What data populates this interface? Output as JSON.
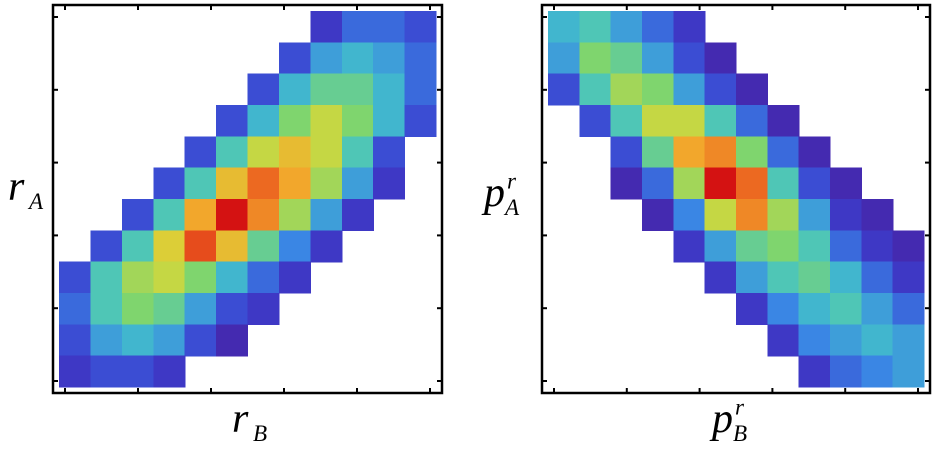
{
  "chart_data": [
    {
      "type": "heatmap",
      "x_label": {
        "main": "r",
        "sub": "B"
      },
      "y_label": {
        "main": "r",
        "sub": "A"
      },
      "zlim": [
        0,
        1
      ],
      "colormap": [
        "#4a1c9c",
        "#3b3fcf",
        "#3a86e4",
        "#43c2c8",
        "#7fd56e",
        "#d7d83a",
        "#f2a72c",
        "#ea5a1e",
        "#d41212"
      ],
      "z": [
        [
          null,
          null,
          null,
          null,
          null,
          null,
          null,
          null,
          0.1,
          0.2,
          0.2,
          0.15
        ],
        [
          null,
          null,
          null,
          null,
          null,
          null,
          null,
          0.15,
          0.3,
          0.35,
          0.3,
          0.2
        ],
        [
          null,
          null,
          null,
          null,
          null,
          null,
          0.15,
          0.35,
          0.45,
          0.45,
          0.35,
          0.2
        ],
        [
          null,
          null,
          null,
          null,
          null,
          0.15,
          0.35,
          0.5,
          0.6,
          0.5,
          0.35,
          0.15
        ],
        [
          null,
          null,
          null,
          null,
          0.15,
          0.4,
          0.6,
          0.7,
          0.6,
          0.4,
          0.15,
          null
        ],
        [
          null,
          null,
          null,
          0.15,
          0.4,
          0.7,
          0.85,
          0.75,
          0.55,
          0.3,
          0.1,
          null
        ],
        [
          null,
          null,
          0.15,
          0.4,
          0.75,
          1.0,
          0.8,
          0.55,
          0.3,
          0.1,
          null,
          null
        ],
        [
          null,
          0.15,
          0.4,
          0.65,
          0.9,
          0.7,
          0.45,
          0.25,
          0.1,
          null,
          null,
          null
        ],
        [
          0.15,
          0.4,
          0.55,
          0.6,
          0.5,
          0.35,
          0.2,
          0.1,
          null,
          null,
          null,
          null
        ],
        [
          0.2,
          0.4,
          0.5,
          0.45,
          0.3,
          0.15,
          0.1,
          null,
          null,
          null,
          null,
          null
        ],
        [
          0.15,
          0.3,
          0.35,
          0.3,
          0.15,
          0.05,
          null,
          null,
          null,
          null,
          null,
          null
        ],
        [
          0.1,
          0.15,
          0.15,
          0.1,
          null,
          null,
          null,
          null,
          null,
          null,
          null,
          null
        ]
      ]
    },
    {
      "type": "heatmap",
      "x_label": {
        "main": "p",
        "sub": "B",
        "sup": "r"
      },
      "y_label": {
        "main": "p",
        "sub": "A",
        "sup": "r"
      },
      "zlim": [
        0,
        1
      ],
      "colormap": [
        "#4a1c9c",
        "#3b3fcf",
        "#3a86e4",
        "#43c2c8",
        "#7fd56e",
        "#d7d83a",
        "#f2a72c",
        "#ea5a1e",
        "#d41212"
      ],
      "z": [
        [
          0.35,
          0.4,
          0.3,
          0.2,
          0.1,
          null,
          null,
          null,
          null,
          null,
          null,
          null
        ],
        [
          0.3,
          0.5,
          0.45,
          0.3,
          0.15,
          0.05,
          null,
          null,
          null,
          null,
          null,
          null
        ],
        [
          0.15,
          0.4,
          0.55,
          0.5,
          0.3,
          0.15,
          0.05,
          null,
          null,
          null,
          null,
          null
        ],
        [
          null,
          0.15,
          0.4,
          0.6,
          0.6,
          0.4,
          0.2,
          0.05,
          null,
          null,
          null,
          null
        ],
        [
          null,
          null,
          0.15,
          0.45,
          0.75,
          0.8,
          0.5,
          0.2,
          0.05,
          null,
          null,
          null
        ],
        [
          null,
          null,
          0.05,
          0.2,
          0.55,
          1.0,
          0.85,
          0.4,
          0.15,
          0.05,
          null,
          null
        ],
        [
          null,
          null,
          null,
          0.05,
          0.25,
          0.6,
          0.8,
          0.55,
          0.3,
          0.1,
          0.05,
          null
        ],
        [
          null,
          null,
          null,
          null,
          0.1,
          0.3,
          0.45,
          0.5,
          0.4,
          0.2,
          0.1,
          0.05
        ],
        [
          null,
          null,
          null,
          null,
          null,
          0.1,
          0.3,
          0.4,
          0.45,
          0.35,
          0.2,
          0.1
        ],
        [
          null,
          null,
          null,
          null,
          null,
          null,
          0.1,
          0.25,
          0.35,
          0.4,
          0.3,
          0.2
        ],
        [
          null,
          null,
          null,
          null,
          null,
          null,
          null,
          0.1,
          0.25,
          0.3,
          0.35,
          0.3
        ],
        [
          null,
          null,
          null,
          null,
          null,
          null,
          null,
          null,
          0.1,
          0.2,
          0.25,
          0.3
        ]
      ]
    }
  ]
}
